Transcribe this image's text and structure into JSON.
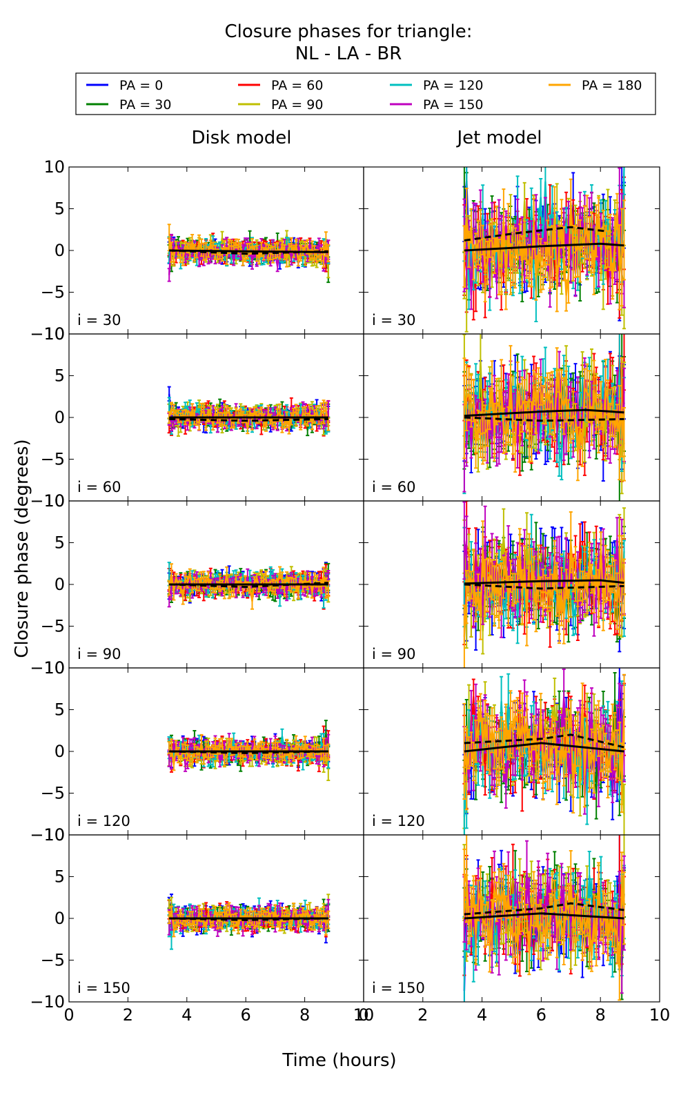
{
  "figure": {
    "title_line1": "Closure phases for triangle:",
    "title_line2": "NL - LA - BR",
    "ylabel": "Closure phase (degrees)",
    "xlabel": "Time (hours)",
    "column_titles": [
      "Disk model",
      "Jet model"
    ]
  },
  "legend": [
    {
      "label": "PA = 0",
      "color": "#0000ff"
    },
    {
      "label": "PA = 30",
      "color": "#008000"
    },
    {
      "label": "PA = 60",
      "color": "#ff0000"
    },
    {
      "label": "PA = 90",
      "color": "#bfbf00"
    },
    {
      "label": "PA = 120",
      "color": "#00bfbf"
    },
    {
      "label": "PA = 150",
      "color": "#bf00bf"
    },
    {
      "label": "PA = 180",
      "color": "#ffa500"
    }
  ],
  "chart_data": {
    "type": "line",
    "title": "Closure phases for triangle: NL - LA - BR",
    "xlabel": "Time (hours)",
    "ylabel": "Closure phase (degrees)",
    "xlim": [
      0,
      10
    ],
    "ylim": [
      -10,
      10
    ],
    "xticks": [
      0,
      2,
      4,
      6,
      8,
      10
    ],
    "yticks": [
      -10,
      -5,
      0,
      5,
      10
    ],
    "time_range_hours": [
      3.4,
      8.8
    ],
    "columns": [
      "Disk model",
      "Jet model"
    ],
    "rows": [
      "i = 30",
      "i = 60",
      "i = 90",
      "i = 120",
      "i = 150"
    ],
    "series": [
      {
        "name": "PA = 0"
      },
      {
        "name": "PA = 30"
      },
      {
        "name": "PA = 60"
      },
      {
        "name": "PA = 90"
      },
      {
        "name": "PA = 120"
      },
      {
        "name": "PA = 150"
      },
      {
        "name": "PA = 180"
      }
    ],
    "noise_amplitude_deg": {
      "Disk model": 1.2,
      "Jet model": 4.5
    },
    "model_curves": {
      "Disk model": [
        {
          "panel": "i = 30",
          "solid": [
            [
              3.4,
              0
            ],
            [
              6,
              -0.1
            ],
            [
              8.8,
              -0.2
            ]
          ],
          "dashed": [
            [
              3.4,
              0
            ],
            [
              6,
              -0.4
            ],
            [
              8.8,
              -0.1
            ]
          ]
        },
        {
          "panel": "i = 60",
          "solid": [
            [
              3.4,
              0
            ],
            [
              6,
              0
            ],
            [
              8.8,
              0
            ]
          ],
          "dashed": [
            [
              3.4,
              -0.2
            ],
            [
              6,
              -0.4
            ],
            [
              8.8,
              -0.2
            ]
          ]
        },
        {
          "panel": "i = 90",
          "solid": [
            [
              3.4,
              0
            ],
            [
              6,
              0
            ],
            [
              8.8,
              0
            ]
          ],
          "dashed": [
            [
              3.4,
              0
            ],
            [
              6,
              -0.3
            ],
            [
              8.8,
              0.2
            ]
          ]
        },
        {
          "panel": "i = 120",
          "solid": [
            [
              3.4,
              0
            ],
            [
              6,
              0
            ],
            [
              8.8,
              0
            ]
          ],
          "dashed": [
            [
              3.4,
              0
            ],
            [
              6,
              -0.2
            ],
            [
              8.8,
              0
            ]
          ]
        },
        {
          "panel": "i = 150",
          "solid": [
            [
              3.4,
              0
            ],
            [
              6,
              0
            ],
            [
              8.8,
              0
            ]
          ],
          "dashed": [
            [
              3.4,
              0
            ],
            [
              6,
              -0.2
            ],
            [
              8.8,
              0
            ]
          ]
        }
      ],
      "Jet model": [
        {
          "panel": "i = 30",
          "solid": [
            [
              3.4,
              0
            ],
            [
              6,
              0.5
            ],
            [
              8,
              0.8
            ],
            [
              8.8,
              0.6
            ]
          ],
          "dashed": [
            [
              3.4,
              1.2
            ],
            [
              5,
              2
            ],
            [
              7,
              2.8
            ],
            [
              8.2,
              2.3
            ]
          ]
        },
        {
          "panel": "i = 60",
          "solid": [
            [
              3.4,
              0.2
            ],
            [
              6,
              0.7
            ],
            [
              7.5,
              0.9
            ],
            [
              8.8,
              0.6
            ]
          ],
          "dashed": [
            [
              3.4,
              0
            ],
            [
              6,
              -0.4
            ],
            [
              8.8,
              -0.2
            ]
          ]
        },
        {
          "panel": "i = 90",
          "solid": [
            [
              3.4,
              0.1
            ],
            [
              6,
              0.4
            ],
            [
              8,
              0.5
            ],
            [
              8.8,
              0.2
            ]
          ],
          "dashed": [
            [
              3.4,
              0
            ],
            [
              6,
              -0.5
            ],
            [
              8.8,
              -0.2
            ]
          ]
        },
        {
          "panel": "i = 120",
          "solid": [
            [
              3.4,
              0
            ],
            [
              6,
              1
            ],
            [
              8.8,
              0
            ]
          ],
          "dashed": [
            [
              3.4,
              1
            ],
            [
              6,
              1.5
            ],
            [
              7,
              2
            ],
            [
              8.8,
              0.5
            ]
          ]
        },
        {
          "panel": "i = 150",
          "solid": [
            [
              3.4,
              0
            ],
            [
              6,
              0.6
            ],
            [
              8.8,
              0
            ]
          ],
          "dashed": [
            [
              3.4,
              0.5
            ],
            [
              6,
              1.2
            ],
            [
              7,
              1.8
            ],
            [
              8.8,
              1
            ]
          ]
        }
      ]
    }
  }
}
